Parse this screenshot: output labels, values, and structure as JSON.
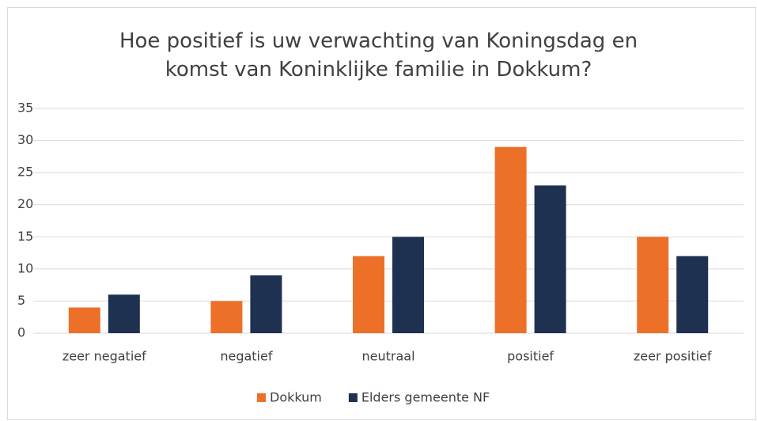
{
  "chart_data": {
    "type": "bar",
    "title": "Hoe positief is uw verwachting van Koningsdag en komst van Koninklijke familie in Dokkum?",
    "categories": [
      "zeer negatief",
      "negatief",
      "neutraal",
      "positief",
      "zeer positief"
    ],
    "series": [
      {
        "name": "Dokkum",
        "color": "#ed7028",
        "values": [
          4,
          5,
          12,
          29,
          15
        ]
      },
      {
        "name": "Elders gemeente NF",
        "color": "#1e3150",
        "values": [
          6,
          9,
          15,
          23,
          12
        ]
      }
    ],
    "ylim": [
      0,
      35
    ],
    "yticks": [
      0,
      5,
      10,
      15,
      20,
      25,
      30,
      35
    ],
    "grid": true,
    "legend": "bottom"
  }
}
